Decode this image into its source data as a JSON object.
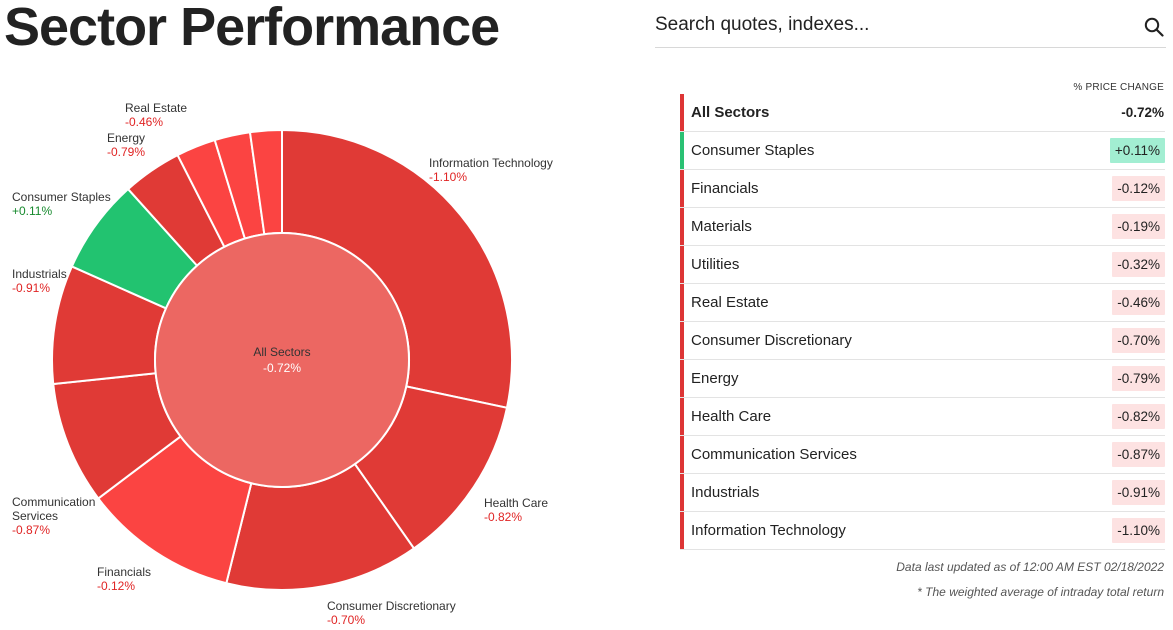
{
  "page": {
    "title": "Sector Performance"
  },
  "search": {
    "placeholder": "Search quotes, indexes..."
  },
  "table": {
    "header": "% PRICE CHANGE",
    "rows": [
      {
        "name": "All Sectors",
        "change": "-0.72%"
      },
      {
        "name": "Consumer Staples",
        "change": "+0.11%"
      },
      {
        "name": "Financials",
        "change": "-0.12%"
      },
      {
        "name": "Materials",
        "change": "-0.19%"
      },
      {
        "name": "Utilities",
        "change": "-0.32%"
      },
      {
        "name": "Real Estate",
        "change": "-0.46%"
      },
      {
        "name": "Consumer Discretionary",
        "change": "-0.70%"
      },
      {
        "name": "Energy",
        "change": "-0.79%"
      },
      {
        "name": "Health Care",
        "change": "-0.82%"
      },
      {
        "name": "Communication Services",
        "change": "-0.87%"
      },
      {
        "name": "Industrials",
        "change": "-0.91%"
      },
      {
        "name": "Information Technology",
        "change": "-1.10%"
      }
    ]
  },
  "footer": {
    "updated": "Data last updated as of 12:00 AM EST 02/18/2022",
    "note": "* The weighted average of intraday total return"
  },
  "chart_data": {
    "type": "pie",
    "center": {
      "label": "All Sectors",
      "value": "-0.72%"
    },
    "slices": [
      {
        "name": "Information Technology",
        "label": "-1.10%",
        "value": -1.1,
        "start_deg": 0,
        "end_deg": 102
      },
      {
        "name": "Health Care",
        "label": "-0.82%",
        "value": -0.82,
        "start_deg": 102,
        "end_deg": 145
      },
      {
        "name": "Consumer Discretionary",
        "label": "-0.70%",
        "value": -0.7,
        "start_deg": 145,
        "end_deg": 194
      },
      {
        "name": "Financials",
        "label": "-0.12%",
        "value": -0.12,
        "start_deg": 194,
        "end_deg": 233
      },
      {
        "name": "Communication Services",
        "label": "-0.87%",
        "value": -0.87,
        "start_deg": 233,
        "end_deg": 264
      },
      {
        "name": "Industrials",
        "label": "-0.91%",
        "value": -0.91,
        "start_deg": 264,
        "end_deg": 294
      },
      {
        "name": "Consumer Staples",
        "label": "+0.11%",
        "value": 0.11,
        "start_deg": 294,
        "end_deg": 318
      },
      {
        "name": "Energy",
        "label": "-0.79%",
        "value": -0.79,
        "start_deg": 318,
        "end_deg": 333
      },
      {
        "name": "Utilities",
        "label": "",
        "value": -0.32,
        "start_deg": 333,
        "end_deg": 343
      },
      {
        "name": "Materials",
        "label": "",
        "value": -0.19,
        "start_deg": 343,
        "end_deg": 352
      },
      {
        "name": "Real Estate",
        "label": "-0.46%",
        "value": -0.46,
        "start_deg": 352,
        "end_deg": 360
      }
    ],
    "labeled_slices": [
      "Information Technology",
      "Health Care",
      "Consumer Discretionary",
      "Financials",
      "Communication Services",
      "Industrials",
      "Consumer Staples",
      "Energy",
      "Real Estate"
    ],
    "colors": {
      "strong_negative": "#e03a36",
      "negative": "#fb4442",
      "positive": "#22c370",
      "center": "#ec6762",
      "negative_text": "#e02424",
      "positive_text": "#178a2e"
    }
  }
}
